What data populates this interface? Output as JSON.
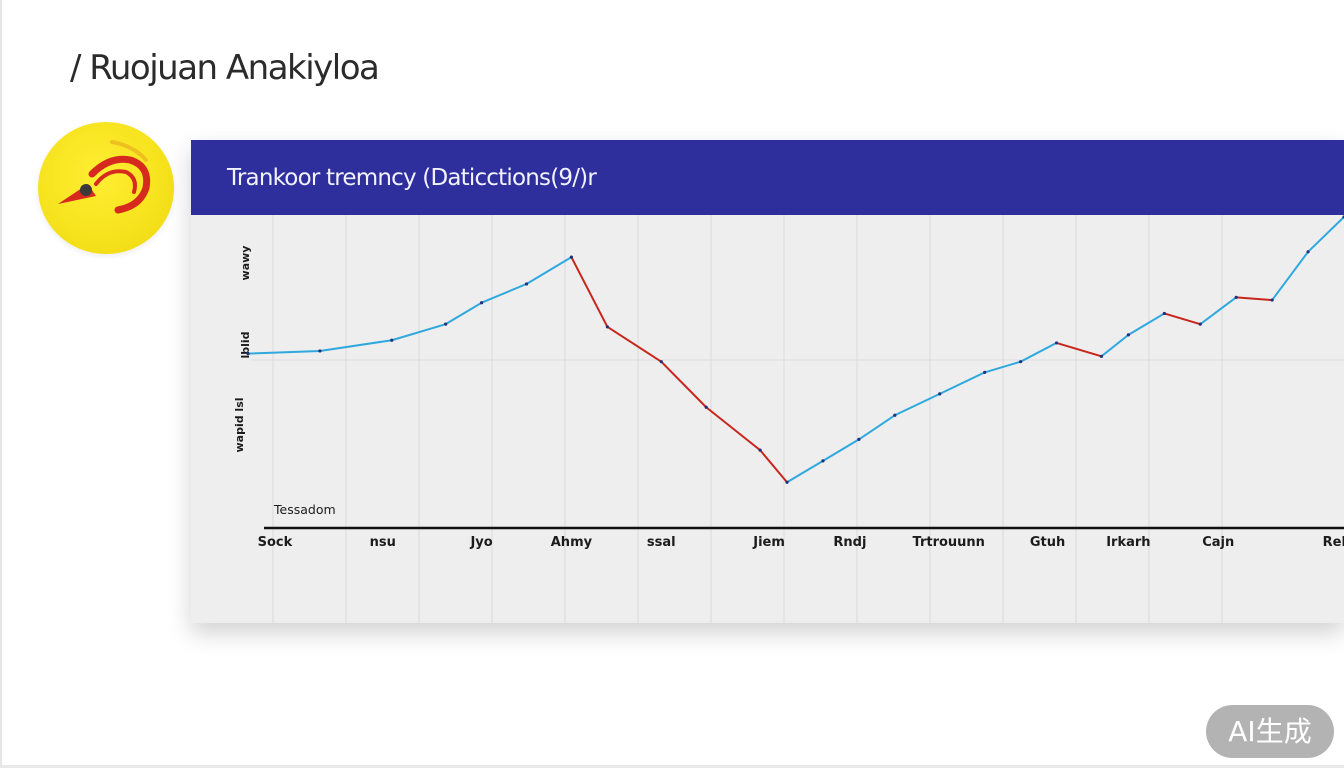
{
  "app": {
    "title": "/ Ruojuan Anakiyloa"
  },
  "logo": {
    "icon": "whistle-icon",
    "colors": {
      "background": "#f6e21c",
      "stroke": "#d62a1e",
      "accent": "#3a3a3a"
    }
  },
  "badge": {
    "label": "AI生成"
  },
  "chart_data": {
    "type": "line",
    "title": "Trankoor tremncy (Daticctions(9/)r",
    "xlabel": "",
    "ylabel": "",
    "y_tick_labels": [
      "wawy",
      "lblid",
      "wapid lsl"
    ],
    "annotation": "Tessadom",
    "categories": [
      "Sock",
      "nsu",
      "Jyo",
      "Ahmy",
      "ssal",
      "Jiem",
      "Rndj",
      "Trtrouunn",
      "Gtuh",
      "Irkarh",
      "Cajn",
      "Rekar"
    ],
    "category_x": [
      0.1,
      1.3,
      2.4,
      3.4,
      4.4,
      5.6,
      6.5,
      7.6,
      8.7,
      9.6,
      10.6,
      12.0
    ],
    "xlim": [
      0,
      12
    ],
    "ylim": [
      0,
      100
    ],
    "grid": true,
    "series": [
      {
        "values_x": [
          -0.2,
          0.6,
          1.4,
          2.0,
          2.4,
          2.9,
          3.4,
          3.8,
          4.4,
          4.9,
          5.5,
          5.8,
          6.2,
          6.6,
          7.0,
          7.5,
          8.0,
          8.4,
          8.8,
          9.3,
          9.6,
          10.0,
          10.4,
          10.8,
          11.2,
          11.6,
          12.0,
          12.4
        ],
        "values_y": [
          52,
          53,
          57,
          63,
          71,
          78,
          88,
          62,
          49,
          32,
          16,
          4,
          12,
          20,
          29,
          37,
          45,
          49,
          56,
          51,
          59,
          67,
          63,
          73,
          72,
          90,
          103,
          116
        ],
        "colors": {
          "up": "#2fa8de",
          "down": "#c8261c"
        }
      }
    ]
  }
}
